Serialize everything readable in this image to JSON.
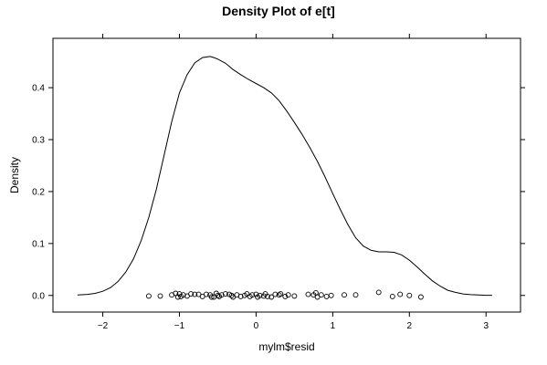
{
  "chart_data": {
    "type": "line",
    "title": "Density Plot of e[t]",
    "xlabel": "mylm$resid",
    "ylabel": "Density",
    "xlim": [
      -2.65,
      3.45
    ],
    "ylim": [
      -0.032,
      0.495
    ],
    "x_ticks": [
      -2,
      -1,
      0,
      1,
      2,
      3
    ],
    "x_tick_labels": [
      "−2",
      "−1",
      "0",
      "1",
      "2",
      "3"
    ],
    "y_ticks": [
      0.0,
      0.1,
      0.2,
      0.3,
      0.4
    ],
    "y_tick_labels": [
      "0.0",
      "0.1",
      "0.2",
      "0.3",
      "0.4"
    ],
    "grid": false,
    "series": [
      {
        "kind": "density-line",
        "x": [
          -2.33,
          -2.2,
          -2.1,
          -2.0,
          -1.9,
          -1.8,
          -1.7,
          -1.6,
          -1.5,
          -1.4,
          -1.3,
          -1.2,
          -1.1,
          -1.0,
          -0.9,
          -0.8,
          -0.7,
          -0.6,
          -0.55,
          -0.5,
          -0.4,
          -0.3,
          -0.2,
          -0.1,
          0.0,
          0.1,
          0.2,
          0.3,
          0.4,
          0.5,
          0.6,
          0.7,
          0.8,
          0.9,
          1.0,
          1.1,
          1.2,
          1.3,
          1.4,
          1.5,
          1.6,
          1.7,
          1.8,
          1.9,
          2.0,
          2.1,
          2.2,
          2.3,
          2.4,
          2.5,
          2.6,
          2.7,
          2.8,
          2.9,
          3.0,
          3.08
        ],
        "y": [
          0.001,
          0.002,
          0.004,
          0.008,
          0.015,
          0.027,
          0.045,
          0.07,
          0.105,
          0.15,
          0.205,
          0.27,
          0.335,
          0.39,
          0.425,
          0.448,
          0.458,
          0.46,
          0.458,
          0.455,
          0.447,
          0.435,
          0.425,
          0.416,
          0.408,
          0.4,
          0.39,
          0.375,
          0.355,
          0.333,
          0.31,
          0.285,
          0.258,
          0.228,
          0.196,
          0.165,
          0.136,
          0.111,
          0.095,
          0.087,
          0.084,
          0.084,
          0.083,
          0.078,
          0.068,
          0.055,
          0.041,
          0.028,
          0.018,
          0.01,
          0.006,
          0.003,
          0.0015,
          0.0008,
          0.0004,
          0.0003
        ]
      },
      {
        "kind": "rug-points",
        "x": [
          -1.4,
          -1.25,
          -1.1,
          -1.05,
          -1.02,
          -1.0,
          -0.98,
          -0.95,
          -0.9,
          -0.85,
          -0.8,
          -0.75,
          -0.7,
          -0.65,
          -0.6,
          -0.58,
          -0.55,
          -0.52,
          -0.5,
          -0.48,
          -0.45,
          -0.4,
          -0.35,
          -0.32,
          -0.3,
          -0.25,
          -0.2,
          -0.15,
          -0.12,
          -0.08,
          -0.05,
          0.0,
          0.02,
          0.05,
          0.1,
          0.12,
          0.15,
          0.2,
          0.25,
          0.3,
          0.32,
          0.38,
          0.42,
          0.5,
          0.68,
          0.75,
          0.78,
          0.8,
          0.85,
          0.92,
          0.98,
          1.15,
          1.3,
          1.6,
          1.78,
          1.88,
          2.0,
          2.15
        ],
        "y": [
          -0.001,
          -0.001,
          0.001,
          0.004,
          -0.003,
          0.003,
          -0.002,
          0.001,
          -0.001,
          0.003,
          0.002,
          0.002,
          -0.002,
          0.002,
          0.001,
          -0.003,
          -0.003,
          0.004,
          0.0,
          -0.002,
          0.001,
          0.003,
          0.002,
          0.0,
          -0.003,
          0.001,
          -0.002,
          0.0,
          0.003,
          -0.002,
          0.001,
          0.002,
          -0.003,
          0.0,
          -0.001,
          0.003,
          -0.002,
          -0.003,
          0.002,
          0.001,
          0.003,
          -0.002,
          0.001,
          -0.001,
          0.002,
          0.001,
          0.005,
          -0.003,
          0.001,
          -0.002,
          0.0,
          0.001,
          0.001,
          0.006,
          -0.002,
          0.002,
          0.0,
          -0.003
        ]
      }
    ]
  }
}
